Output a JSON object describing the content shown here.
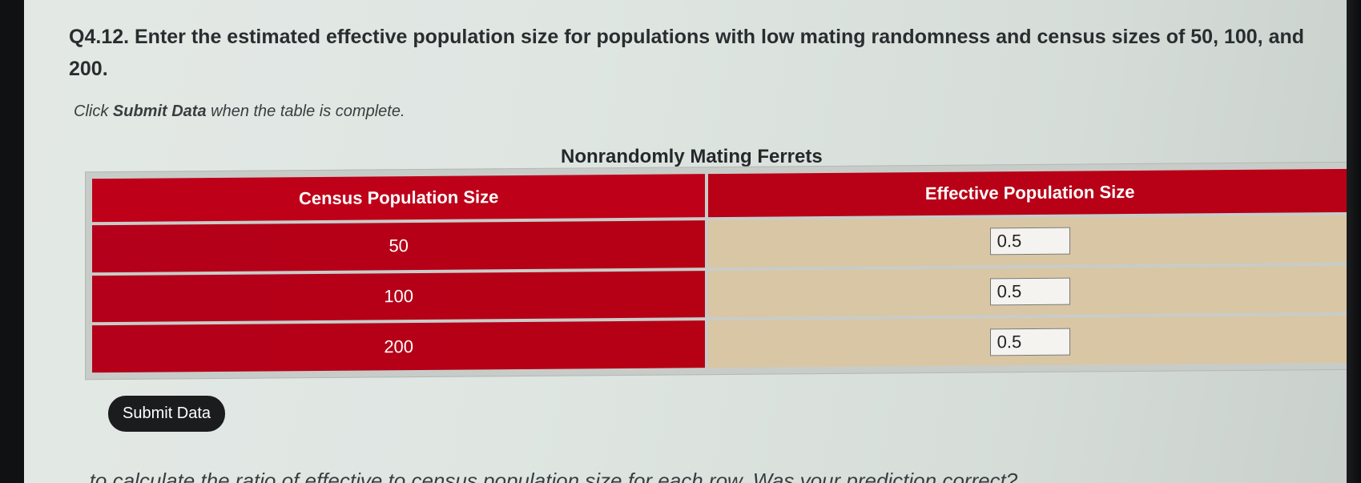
{
  "question": {
    "text": "Q4.12. Enter the estimated effective population size for populations with low mating randomness and census sizes of 50, 100, and 200."
  },
  "instruction": {
    "prefix": "Click ",
    "bold": "Submit Data",
    "suffix": " when the table is complete."
  },
  "table": {
    "title": "Nonrandomly Mating Ferrets",
    "headers": [
      "Census Population Size",
      "Effective Population Size"
    ],
    "rows": [
      {
        "census": "50",
        "effective": "0.5"
      },
      {
        "census": "100",
        "effective": "0.5"
      },
      {
        "census": "200",
        "effective": "0.5"
      }
    ]
  },
  "submit_label": "Submit Data",
  "next_question_partial": "...to calculate the ratio of effective to census population size for each row. Was your prediction correct?"
}
